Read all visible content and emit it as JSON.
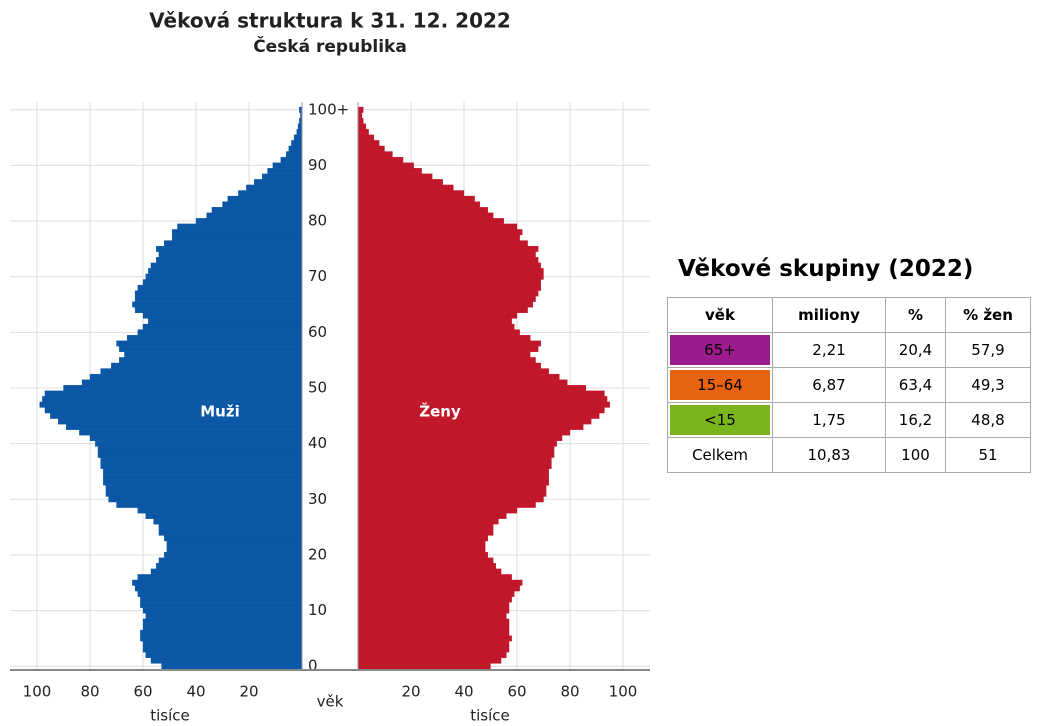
{
  "chart_data": {
    "type": "pyramid",
    "title": "Věková struktura k 31. 12. 2022",
    "subtitle": "Česká republika",
    "y": [
      0,
      1,
      2,
      3,
      4,
      5,
      6,
      7,
      8,
      9,
      10,
      11,
      12,
      13,
      14,
      15,
      16,
      17,
      18,
      19,
      20,
      21,
      22,
      23,
      24,
      25,
      26,
      27,
      28,
      29,
      30,
      31,
      32,
      33,
      34,
      35,
      36,
      37,
      38,
      39,
      40,
      41,
      42,
      43,
      44,
      45,
      46,
      47,
      48,
      49,
      50,
      51,
      52,
      53,
      54,
      55,
      56,
      57,
      58,
      59,
      60,
      61,
      62,
      63,
      64,
      65,
      66,
      67,
      68,
      69,
      70,
      71,
      72,
      73,
      74,
      75,
      76,
      77,
      78,
      79,
      80,
      81,
      82,
      83,
      84,
      85,
      86,
      87,
      88,
      89,
      90,
      91,
      92,
      93,
      94,
      95,
      96,
      97,
      98,
      99,
      100
    ],
    "ylim": [
      -0.5,
      100.5
    ],
    "yticks": [
      0,
      10,
      20,
      30,
      40,
      50,
      60,
      70,
      80,
      90,
      {
        "value": 100,
        "label": "100+"
      }
    ],
    "ylabel": "věk",
    "xlim": [
      0,
      100
    ],
    "xticks": [
      20,
      40,
      60,
      80,
      100
    ],
    "xlabel": "tisíce",
    "grid": true,
    "series": [
      {
        "name": "Muži",
        "color": "#0b57a5",
        "values": [
          53,
          57,
          59,
          60,
          60,
          61,
          61,
          60,
          60,
          59,
          60,
          61,
          61,
          62,
          63,
          64,
          62,
          57,
          55,
          54,
          52,
          51,
          51,
          52,
          54,
          54,
          56,
          59,
          62,
          70,
          73,
          74,
          74,
          75,
          75,
          75,
          76,
          76,
          77,
          77,
          78,
          80,
          84,
          89,
          92,
          95,
          97,
          99,
          98,
          97,
          90,
          83,
          80,
          76,
          72,
          69,
          67,
          69,
          70,
          66,
          62,
          60,
          58,
          60,
          63,
          64,
          63,
          63,
          62,
          60,
          59,
          58,
          57,
          55,
          54,
          55,
          52,
          49,
          49,
          47,
          40,
          36,
          34,
          30,
          28,
          24,
          21,
          18,
          15,
          13,
          11,
          8,
          6,
          5,
          4,
          3,
          2,
          1.5,
          1,
          0.6,
          1
        ]
      },
      {
        "name": "Ženy",
        "color": "#c0172b",
        "values": [
          50,
          54,
          56,
          57,
          57,
          58,
          57,
          57,
          57,
          56,
          57,
          57,
          58,
          59,
          61,
          62,
          58,
          54,
          52,
          51,
          49,
          48,
          48,
          49,
          51,
          51,
          53,
          56,
          60,
          67,
          70,
          71,
          71,
          72,
          72,
          72,
          73,
          73,
          74,
          74,
          75,
          77,
          80,
          85,
          88,
          91,
          93,
          95,
          94,
          93,
          86,
          79,
          76,
          72,
          69,
          67,
          65,
          68,
          69,
          65,
          61,
          59,
          58,
          60,
          64,
          66,
          67,
          68,
          69,
          69,
          70,
          70,
          69,
          68,
          67,
          68,
          64,
          61,
          62,
          60,
          55,
          51,
          49,
          46,
          44,
          40,
          36,
          32,
          28,
          24,
          21,
          17,
          13,
          10,
          8,
          6,
          4,
          3,
          2,
          1.5,
          2
        ]
      }
    ]
  },
  "table": {
    "title": "Věkové skupiny (2022)",
    "header": [
      "věk",
      "miliony",
      "%",
      "% žen"
    ],
    "rows": [
      [
        "65+",
        "2,21",
        "20,4",
        "57,9"
      ],
      [
        "15–64",
        "6,87",
        "63,4",
        "49,3"
      ],
      [
        "<15",
        "1,75",
        "16,2",
        "48,8"
      ],
      [
        "Celkem",
        "10,83",
        "100",
        "51"
      ]
    ],
    "colors": [
      "#9c1b8e",
      "#e8630f",
      "#79b51d"
    ]
  }
}
